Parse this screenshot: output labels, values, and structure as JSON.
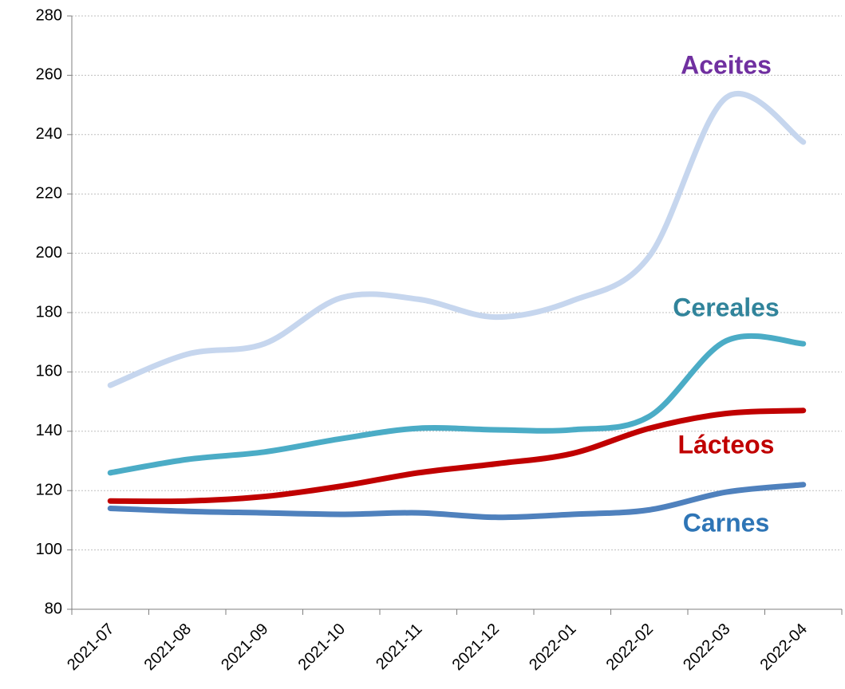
{
  "chart_data": {
    "type": "line",
    "categories": [
      "2021-07",
      "2021-08",
      "2021-09",
      "2021-10",
      "2021-11",
      "2021-12",
      "2022-01",
      "2022-02",
      "2022-03",
      "2022-04"
    ],
    "series": [
      {
        "name": "Aceites",
        "color": "#c6d6ee",
        "label_color": "#7030a0",
        "values": [
          155.5,
          166,
          169.5,
          185,
          184.5,
          178.5,
          184,
          199,
          252.5,
          237.5
        ]
      },
      {
        "name": "Cereales",
        "color": "#4bacc6",
        "label_color": "#31849b",
        "values": [
          126,
          130.5,
          133,
          137.5,
          141,
          140.5,
          140.5,
          145,
          170.5,
          169.5
        ]
      },
      {
        "name": "Lácteos",
        "color": "#c00000",
        "label_color": "#c00000",
        "values": [
          116.5,
          116.5,
          118,
          121.5,
          126,
          129,
          132.5,
          141,
          146,
          147
        ]
      },
      {
        "name": "Carnes",
        "color": "#4f81bd",
        "label_color": "#2e75b6",
        "values": [
          114,
          113,
          112.5,
          112,
          112.5,
          111,
          112,
          113.5,
          119.5,
          122
        ]
      }
    ],
    "ylim": [
      80,
      280
    ],
    "yticks": [
      80,
      100,
      120,
      140,
      160,
      180,
      200,
      220,
      240,
      260,
      280
    ],
    "grid": true
  }
}
